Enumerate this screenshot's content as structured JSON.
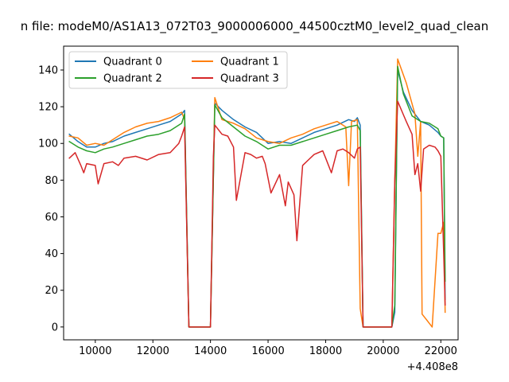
{
  "chart_data": {
    "type": "line",
    "title": "n file: modeM0/AS1A13_072T03_9000006000_44500cztM0_level2_quad_clean",
    "xlabel": "",
    "ylabel": "",
    "x_offset_label": "+4.408e8",
    "xlim": [
      8900,
      22600
    ],
    "ylim": [
      -7,
      153
    ],
    "x_ticks": [
      10000,
      12000,
      14000,
      16000,
      18000,
      20000,
      22000
    ],
    "x_tick_labels": [
      "10000",
      "12000",
      "14000",
      "16000",
      "18000",
      "20000",
      "22000"
    ],
    "y_ticks": [
      0,
      20,
      40,
      60,
      80,
      100,
      120,
      140
    ],
    "y_tick_labels": [
      "0",
      "20",
      "40",
      "60",
      "80",
      "100",
      "120",
      "140"
    ],
    "grid": false,
    "legend_position": "top-left",
    "legend_columns": 2,
    "colors": {
      "Quadrant 0": "#1f77b4",
      "Quadrant 1": "#ff7f0e",
      "Quadrant 2": "#2ca02c",
      "Quadrant 3": "#d62728"
    },
    "series": [
      {
        "name": "Quadrant 0",
        "x": [
          9100,
          9400,
          9700,
          10000,
          10300,
          10600,
          11000,
          11400,
          11800,
          12200,
          12600,
          13000,
          13100,
          13250,
          14000,
          14150,
          14400,
          14800,
          15200,
          15600,
          16000,
          16400,
          16800,
          17200,
          17600,
          18000,
          18400,
          18800,
          19000,
          19100,
          19200,
          19300,
          20300,
          20400,
          20500,
          20700,
          21000,
          21300,
          21600,
          21900,
          22000,
          22100,
          22150
        ],
        "y": [
          105,
          101,
          98,
          98,
          100,
          101,
          104,
          106,
          108,
          110,
          112,
          116,
          118,
          0,
          0,
          122,
          118,
          113,
          109,
          106,
          100,
          101,
          100,
          103,
          106,
          108,
          110,
          113,
          112,
          114,
          110,
          0,
          0,
          8,
          140,
          128,
          118,
          112,
          110,
          106,
          104,
          103,
          15
        ]
      },
      {
        "name": "Quadrant 1",
        "x": [
          9100,
          9400,
          9700,
          10000,
          10300,
          10600,
          11000,
          11400,
          11800,
          12200,
          12600,
          13000,
          13100,
          13250,
          14000,
          14150,
          14400,
          14800,
          15200,
          15600,
          16000,
          16400,
          16800,
          17200,
          17600,
          18000,
          18400,
          18700,
          18800,
          18900,
          19100,
          19200,
          19300,
          20300,
          20400,
          20500,
          20800,
          21100,
          21200,
          21300,
          21350,
          21500,
          21700,
          21900,
          22000,
          22100,
          22150
        ],
        "y": [
          104,
          103,
          99,
          100,
          99,
          102,
          106,
          109,
          111,
          112,
          114,
          117,
          113,
          0,
          0,
          125,
          113,
          111,
          108,
          103,
          101,
          100,
          103,
          105,
          108,
          110,
          112,
          109,
          77,
          112,
          113,
          10,
          0,
          0,
          80,
          146,
          133,
          116,
          93,
          112,
          7,
          4,
          0,
          51,
          51,
          57,
          8
        ]
      },
      {
        "name": "Quadrant 2",
        "x": [
          9100,
          9400,
          9700,
          10000,
          10300,
          10600,
          11000,
          11400,
          11800,
          12200,
          12600,
          13000,
          13100,
          13250,
          14000,
          14150,
          14400,
          14800,
          15200,
          15600,
          16000,
          16400,
          16800,
          17200,
          17600,
          18000,
          18400,
          18800,
          19100,
          19200,
          19300,
          20300,
          20400,
          20500,
          20700,
          21000,
          21300,
          21600,
          21900,
          22000,
          22100,
          22150
        ],
        "y": [
          101,
          98,
          96,
          95,
          97,
          98,
          100,
          102,
          104,
          105,
          107,
          111,
          116,
          0,
          0,
          121,
          114,
          109,
          104,
          101,
          97,
          99,
          99,
          101,
          103,
          105,
          107,
          109,
          110,
          107,
          0,
          0,
          12,
          142,
          127,
          115,
          112,
          111,
          108,
          104,
          103,
          25
        ]
      },
      {
        "name": "Quadrant 3",
        "x": [
          9100,
          9300,
          9500,
          9600,
          9700,
          10000,
          10100,
          10300,
          10600,
          10800,
          11000,
          11400,
          11800,
          12200,
          12600,
          12900,
          13000,
          13100,
          13250,
          14000,
          14100,
          14150,
          14400,
          14600,
          14800,
          14900,
          15200,
          15400,
          15600,
          15800,
          15900,
          16100,
          16400,
          16600,
          16700,
          16900,
          17000,
          17200,
          17400,
          17600,
          17900,
          18000,
          18200,
          18400,
          18600,
          18800,
          19000,
          19100,
          19200,
          19300,
          20300,
          20400,
          20500,
          20800,
          21000,
          21100,
          21200,
          21300,
          21400,
          21600,
          21800,
          21900,
          22000,
          22100,
          22150
        ],
        "y": [
          92,
          95,
          88,
          84,
          89,
          88,
          78,
          89,
          90,
          88,
          92,
          93,
          91,
          94,
          95,
          100,
          104,
          109,
          0,
          0,
          93,
          110,
          105,
          104,
          98,
          69,
          95,
          94,
          92,
          93,
          89,
          73,
          83,
          66,
          79,
          72,
          47,
          88,
          91,
          94,
          96,
          92,
          84,
          96,
          97,
          95,
          92,
          97,
          98,
          0,
          0,
          80,
          123,
          112,
          105,
          83,
          89,
          74,
          97,
          99,
          98,
          96,
          93,
          40,
          12
        ]
      }
    ]
  }
}
